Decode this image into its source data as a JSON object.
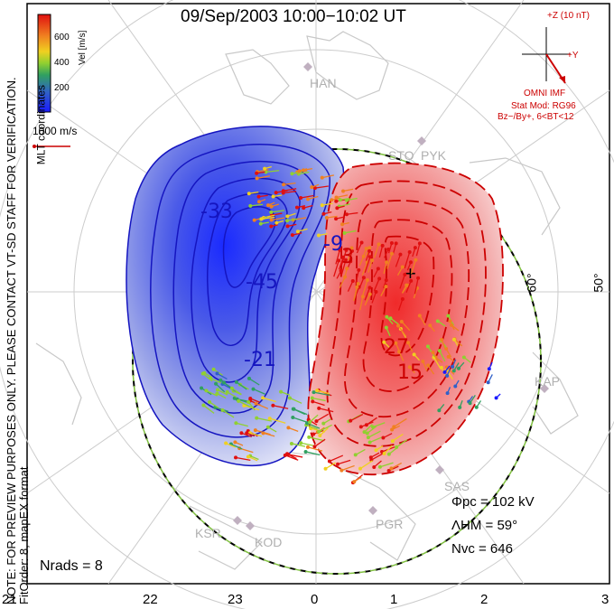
{
  "title": "09/Sep/2003  10:00−10:02  UT",
  "side_note_line1": "NOTE: FOR PREVIEW PURPOSES ONLY. PLEASE CONTACT VT-SD STAFF FOR VERIFICATION.",
  "side_note_line2": "FitOrder: 8, mapEX format",
  "mlt_coordinates": "MLT coordinates",
  "colorbar": {
    "label": "Vel [m/s]",
    "ticks": [
      "600",
      "400",
      "200"
    ],
    "colors": [
      "#1a1aff",
      "#3060c8",
      "#30a060",
      "#90d030",
      "#f0d020",
      "#f08020",
      "#e01010"
    ]
  },
  "vector_scale": "1000 m/s",
  "imf": {
    "z_label": "+Z (10 nT)",
    "y_label": "+Y",
    "source": "OMNI IMF",
    "stat_mod": "Stat Mod: RG96",
    "condition": "Bz−/By+, 6<BT<12"
  },
  "stats": {
    "phi_pc": "Φpc  =  102  kV",
    "lambda_hm": "ΛHM  =  59°",
    "n_vc": "Nvc  =  646"
  },
  "n_rads": "Nrads  =  8",
  "mlt_ticks": [
    "21",
    "22",
    "23",
    "0",
    "1",
    "2",
    "3"
  ],
  "lat_labels": [
    "60°",
    "50°"
  ],
  "sites": [
    "HAN",
    "STO",
    "PYK",
    "KAP",
    "SAS",
    "PGR",
    "KSR",
    "KOD"
  ],
  "contour_labels": {
    "neg": [
      "-33",
      "-45",
      "-21",
      "-9"
    ],
    "pos": [
      "3",
      "15",
      "27"
    ]
  },
  "colors": {
    "negative": "#1515c0",
    "positive": "#cc0000",
    "boundary": "#7fbf3f"
  }
}
